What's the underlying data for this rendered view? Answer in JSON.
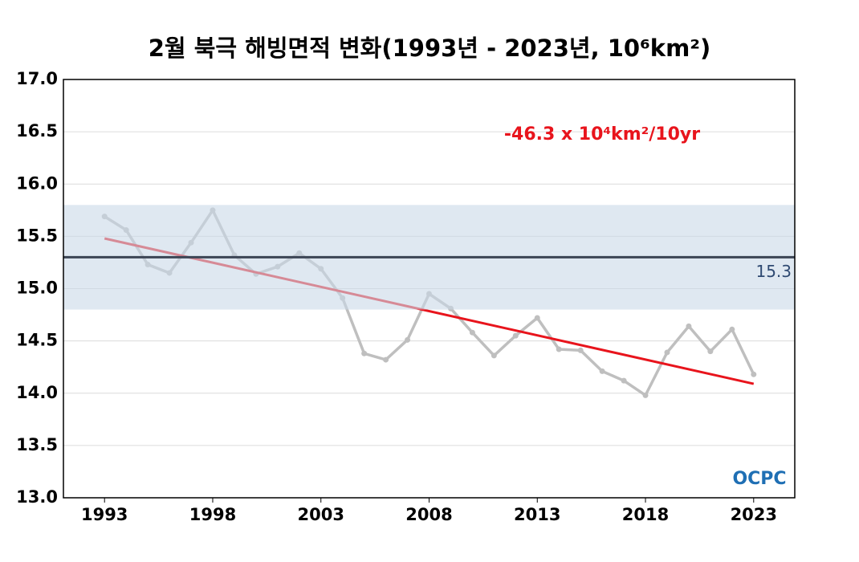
{
  "chart_data": {
    "type": "line",
    "title": "2월 북극 해빙면적 변화(1993년 - 2023년, 10⁶km²)",
    "annotation": "-46.3 x 10⁴km²/10yr",
    "logo": "OCPC",
    "x": [
      1993,
      1994,
      1995,
      1996,
      1997,
      1998,
      1999,
      2000,
      2001,
      2002,
      2003,
      2004,
      2005,
      2006,
      2007,
      2008,
      2009,
      2010,
      2011,
      2012,
      2013,
      2014,
      2015,
      2016,
      2017,
      2018,
      2019,
      2020,
      2021,
      2022,
      2023
    ],
    "series": [
      {
        "color": "#bfbfbf",
        "values": [
          15.69,
          15.56,
          15.23,
          15.15,
          15.44,
          15.75,
          15.32,
          15.14,
          15.21,
          15.34,
          15.19,
          14.91,
          14.38,
          14.32,
          14.51,
          14.95,
          14.81,
          14.58,
          14.36,
          14.55,
          14.72,
          14.42,
          14.41,
          14.21,
          14.12,
          13.98,
          14.39,
          14.64,
          14.4,
          14.61,
          14.18
        ]
      }
    ],
    "trend": {
      "x": [
        1993,
        2023
      ],
      "values": [
        15.48,
        14.09
      ],
      "color": "#e8141c"
    },
    "mean": 15.3,
    "mean_color": "#3c4555",
    "band": [
      14.8,
      15.8
    ],
    "band_color": "#c9d9e8",
    "xlim": [
      1991.1,
      2024.9
    ],
    "xticks": [
      1993,
      1998,
      2003,
      2008,
      2013,
      2018,
      2023
    ],
    "ylim": [
      13.0,
      17.0
    ],
    "yticks": [
      {
        "value": 13,
        "label": "13.0"
      },
      {
        "value": 13.5,
        "label": "13.5"
      },
      {
        "value": 14,
        "label": "14.0"
      },
      {
        "value": 14.5,
        "label": "14.5"
      },
      {
        "value": 15,
        "label": "15.0"
      },
      {
        "value": 15.5,
        "label": "15.5"
      },
      {
        "value": 16,
        "label": "16.0"
      },
      {
        "value": 16.5,
        "label": "16.5"
      },
      {
        "value": 17,
        "label": "17.0"
      }
    ],
    "grid": true
  }
}
